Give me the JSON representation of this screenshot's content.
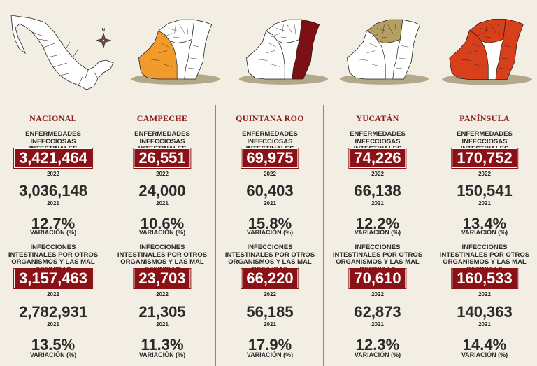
{
  "colors": {
    "background": "#f3eee4",
    "value_box": "#8a1216",
    "region_title": "#8c1a1a",
    "map_campeche": "#f29a2b",
    "map_quintana_roo": "#7e1014",
    "map_yucatan": "#b59e62",
    "map_peninsula": "#d8401c",
    "map_base": "#ffffff",
    "map_outline": "#222222",
    "map_shadow": "#b4a88c"
  },
  "icons": {
    "compass": "compass-rose-icon",
    "compass_label": "N"
  },
  "labels": {
    "section1_title": "ENFERMEDADES INFECCIOSAS INTESTINALES",
    "section2_title": "INFECCIONES INTESTINALES POR OTROS ORGANISMOS Y LAS MAL DEFINIDAS",
    "year_current": "2022",
    "year_prev": "2021",
    "variation": "VARIACIÓN (%)"
  },
  "chart_data": {
    "type": "table",
    "columns": [
      "NACIONAL",
      "CAMPECHE",
      "QUINTANA ROO",
      "YUCATÁN",
      "PANÍNSULA"
    ],
    "sections": [
      {
        "title": "ENFERMEDADES INFECCIOSAS INTESTINALES",
        "rows": [
          {
            "label": "2022",
            "values": [
              "3,421,464",
              "26,551",
              "69,975",
              "74,226",
              "170,752"
            ]
          },
          {
            "label": "2021",
            "values": [
              "3,036,148",
              "24,000",
              "60,403",
              "66,138",
              "150,541"
            ]
          },
          {
            "label": "VARIACIÓN (%)",
            "values": [
              "12.7%",
              "10.6%",
              "15.8%",
              "12.2%",
              "13.4%"
            ]
          }
        ]
      },
      {
        "title": "INFECCIONES INTESTINALES POR OTROS ORGANISMOS Y LAS MAL DEFINIDAS",
        "rows": [
          {
            "label": "2022",
            "values": [
              "3,157,463",
              "23,703",
              "66,220",
              "70,610",
              "160,533"
            ]
          },
          {
            "label": "2021",
            "values": [
              "2,782,931",
              "21,305",
              "56,185",
              "62,873",
              "140,363"
            ]
          },
          {
            "label": "VARIACIÓN (%)",
            "values": [
              "13.5%",
              "11.3%",
              "17.9%",
              "12.3%",
              "14.4%"
            ]
          }
        ]
      }
    ]
  }
}
